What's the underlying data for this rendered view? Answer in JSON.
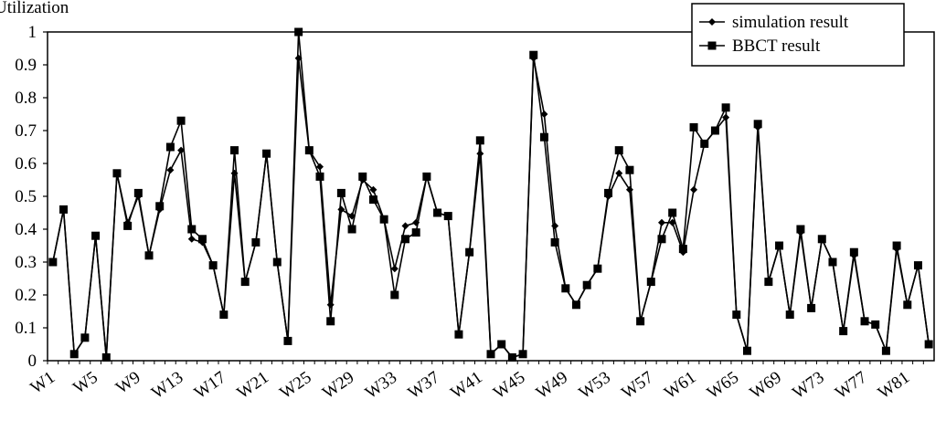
{
  "chart_data": {
    "type": "line",
    "y_label": "Utilization",
    "categories": [
      "W1",
      null,
      null,
      null,
      "W5",
      null,
      null,
      null,
      "W9",
      null,
      null,
      null,
      "W13",
      null,
      null,
      null,
      "W17",
      null,
      null,
      null,
      "W21",
      null,
      null,
      null,
      "W25",
      null,
      null,
      null,
      "W29",
      null,
      null,
      null,
      "W33",
      null,
      null,
      null,
      "W37",
      null,
      null,
      null,
      "W41",
      null,
      null,
      null,
      "W45",
      null,
      null,
      null,
      "W49",
      null,
      null,
      null,
      "W53",
      null,
      null,
      null,
      "W57",
      null,
      null,
      null,
      "W61",
      null,
      null,
      null,
      "W65",
      null,
      null,
      null,
      "W69",
      null,
      null,
      null,
      "W73",
      null,
      null,
      null,
      "W77",
      null,
      null,
      null,
      "W81",
      null,
      null
    ],
    "series": [
      {
        "name": "simulation result",
        "color": "#000000",
        "marker": "diamond",
        "values": [
          0.3,
          0.46,
          0.02,
          0.07,
          0.38,
          0.01,
          0.57,
          0.42,
          0.5,
          0.32,
          0.46,
          0.58,
          0.64,
          0.37,
          0.36,
          0.29,
          0.14,
          0.57,
          0.24,
          0.36,
          0.63,
          0.3,
          0.06,
          0.92,
          0.64,
          0.59,
          0.17,
          0.46,
          0.44,
          0.55,
          0.52,
          0.43,
          0.28,
          0.41,
          0.42,
          0.56,
          0.45,
          0.44,
          0.08,
          0.33,
          0.63,
          0.02,
          0.05,
          0.01,
          0.02,
          0.92,
          0.75,
          0.41,
          0.22,
          0.17,
          0.23,
          0.28,
          0.5,
          0.57,
          0.52,
          0.12,
          0.24,
          0.42,
          0.42,
          0.33,
          0.52,
          0.66,
          0.7,
          0.74,
          0.14,
          0.03,
          0.71,
          0.24,
          0.35,
          0.14,
          0.39,
          0.16,
          0.37,
          0.3,
          0.09,
          0.32,
          0.12,
          0.11,
          0.03,
          0.34,
          0.17,
          0.29,
          0.05
        ]
      },
      {
        "name": "BBCT result",
        "color": "#000000",
        "marker": "square",
        "values": [
          0.3,
          0.46,
          0.02,
          0.07,
          0.38,
          0.01,
          0.57,
          0.41,
          0.51,
          0.32,
          0.47,
          0.65,
          0.73,
          0.4,
          0.37,
          0.29,
          0.14,
          0.64,
          0.24,
          0.36,
          0.63,
          0.3,
          0.06,
          1.0,
          0.64,
          0.56,
          0.12,
          0.51,
          0.4,
          0.56,
          0.49,
          0.43,
          0.2,
          0.37,
          0.39,
          0.56,
          0.45,
          0.44,
          0.08,
          0.33,
          0.67,
          0.02,
          0.05,
          0.01,
          0.02,
          0.93,
          0.68,
          0.36,
          0.22,
          0.17,
          0.23,
          0.28,
          0.51,
          0.64,
          0.58,
          0.12,
          0.24,
          0.37,
          0.45,
          0.34,
          0.71,
          0.66,
          0.7,
          0.77,
          0.14,
          0.03,
          0.72,
          0.24,
          0.35,
          0.14,
          0.4,
          0.16,
          0.37,
          0.3,
          0.09,
          0.33,
          0.12,
          0.11,
          0.03,
          0.35,
          0.17,
          0.29,
          0.05
        ]
      }
    ],
    "ylim": [
      0,
      1
    ],
    "yticks": [
      0,
      0.1,
      0.2,
      0.3,
      0.4,
      0.5,
      0.6,
      0.7,
      0.8,
      0.9,
      1
    ],
    "legend": "top-right",
    "grid": false
  }
}
